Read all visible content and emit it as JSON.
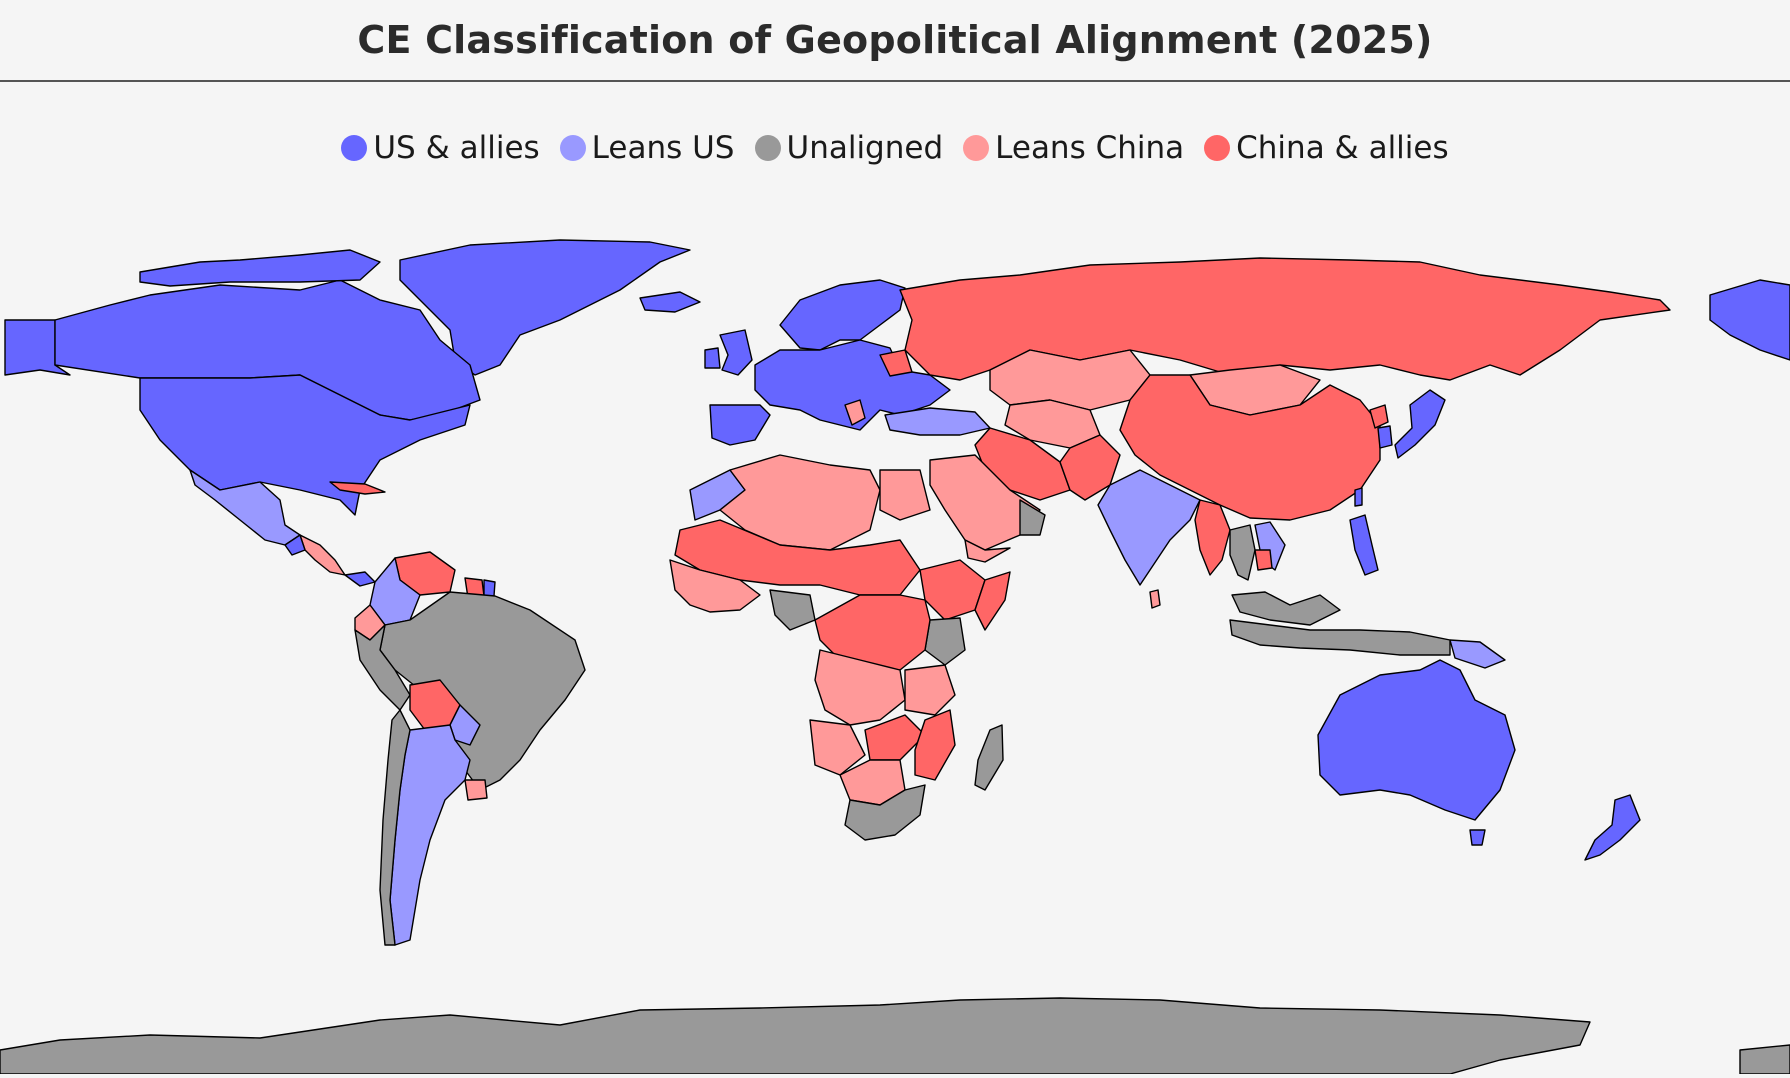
{
  "title": "CE Classification of Geopolitical Alignment (2025)",
  "legend": [
    {
      "label": "US & allies",
      "color": "#6666ff"
    },
    {
      "label": "Leans US",
      "color": "#9999ff"
    },
    {
      "label": "Unaligned",
      "color": "#999999"
    },
    {
      "label": "Leans China",
      "color": "#ff9999"
    },
    {
      "label": "China & allies",
      "color": "#ff6666"
    }
  ],
  "colors": {
    "us_allies": "#6666ff",
    "leans_us": "#9999ff",
    "unaligned": "#999999",
    "leans_china": "#ff9999",
    "china_allies": "#ff6666",
    "background": "#f5f5f5"
  }
}
